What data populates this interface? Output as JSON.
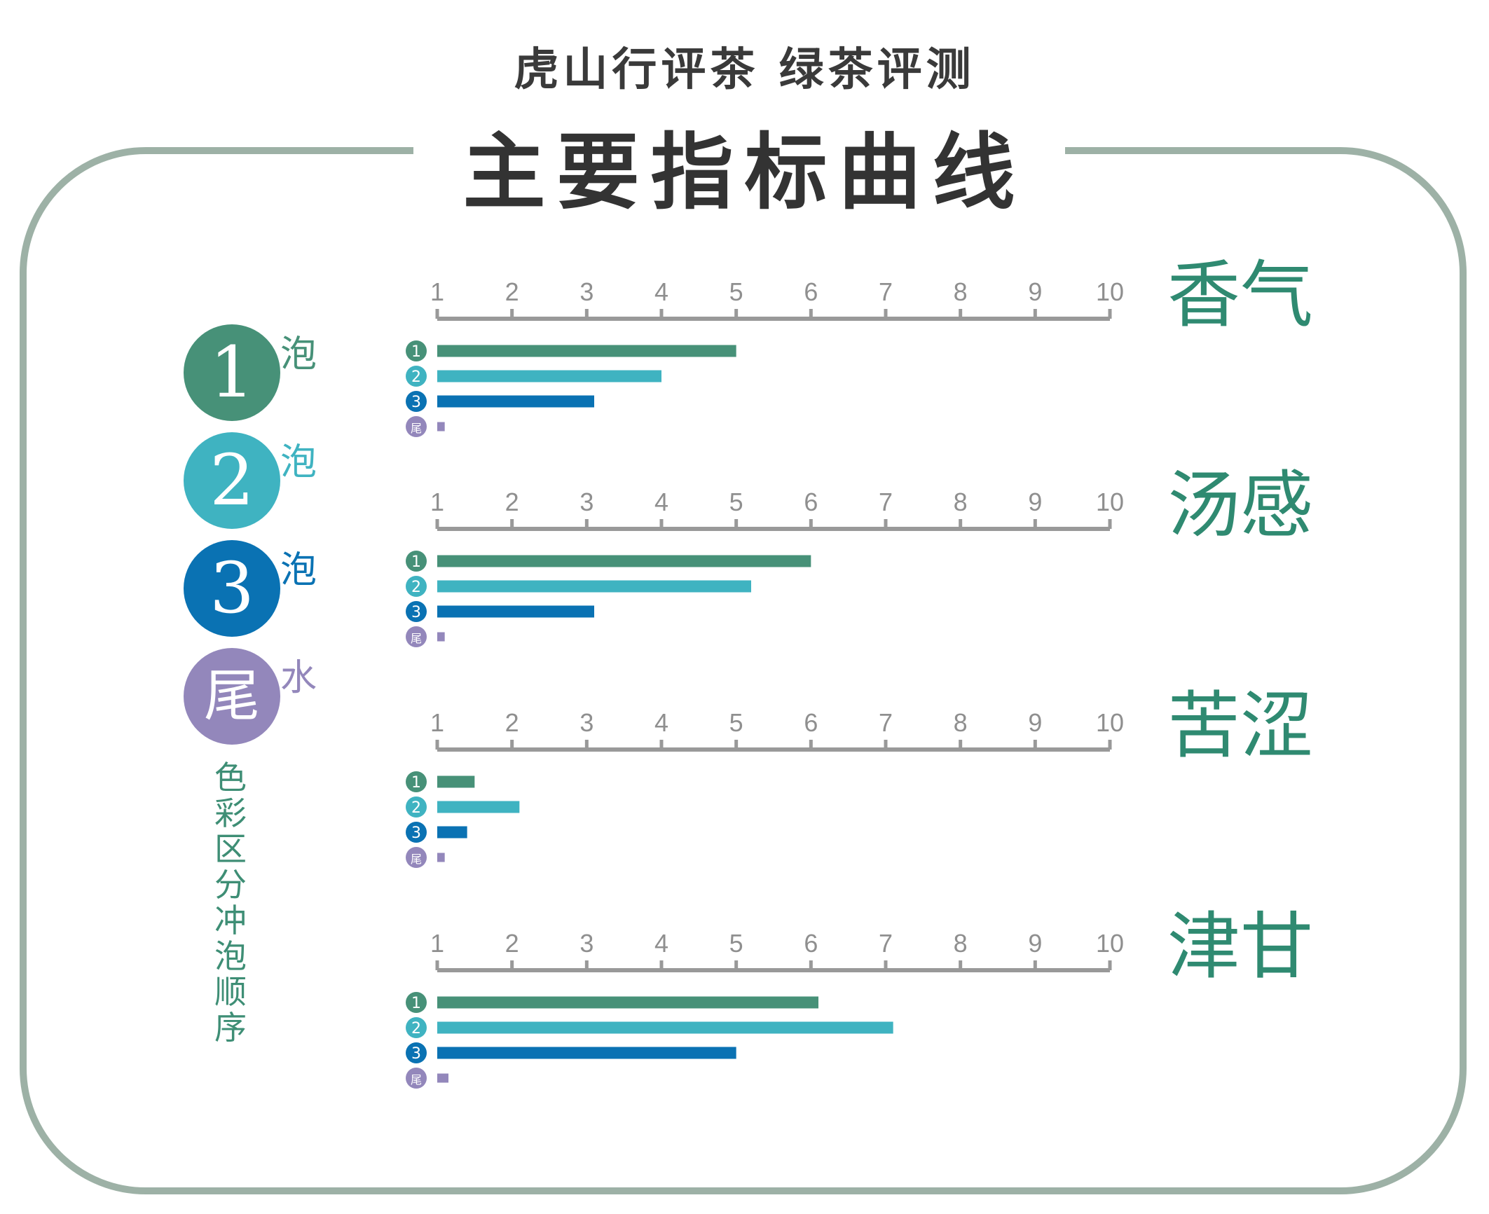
{
  "header": {
    "subtitle": "虎山行评茶  绿茶评测",
    "title": "主要指标曲线"
  },
  "legend": {
    "items": [
      {
        "badge": "1",
        "label": "泡",
        "color": "#479178"
      },
      {
        "badge": "2",
        "label": "泡",
        "color": "#3fb3c1"
      },
      {
        "badge": "3",
        "label": "泡",
        "color": "#0a72b3"
      },
      {
        "badge": "尾",
        "label": "水",
        "color": "#9387bb"
      }
    ],
    "note": "色彩区分冲泡顺序"
  },
  "chart_data": [
    {
      "type": "bar",
      "orientation": "horizontal",
      "title": "香气",
      "xlim": [
        1,
        10
      ],
      "ticks": [
        "1",
        "2",
        "3",
        "4",
        "5",
        "6",
        "7",
        "8",
        "9",
        "10"
      ],
      "categories": [
        "1",
        "2",
        "3",
        "尾"
      ],
      "values": [
        5.0,
        4.0,
        3.1,
        1.1
      ]
    },
    {
      "type": "bar",
      "orientation": "horizontal",
      "title": "汤感",
      "xlim": [
        1,
        10
      ],
      "ticks": [
        "1",
        "2",
        "3",
        "4",
        "5",
        "6",
        "7",
        "8",
        "9",
        "10"
      ],
      "categories": [
        "1",
        "2",
        "3",
        "尾"
      ],
      "values": [
        6.0,
        5.2,
        3.1,
        1.1
      ]
    },
    {
      "type": "bar",
      "orientation": "horizontal",
      "title": "苦涩",
      "xlim": [
        1,
        10
      ],
      "ticks": [
        "1",
        "2",
        "3",
        "4",
        "5",
        "6",
        "7",
        "8",
        "9",
        "10"
      ],
      "categories": [
        "1",
        "2",
        "3",
        "尾"
      ],
      "values": [
        1.5,
        2.1,
        1.4,
        1.1
      ]
    },
    {
      "type": "bar",
      "orientation": "horizontal",
      "title": "津甘",
      "xlim": [
        1,
        10
      ],
      "ticks": [
        "1",
        "2",
        "3",
        "4",
        "5",
        "6",
        "7",
        "8",
        "9",
        "10"
      ],
      "categories": [
        "1",
        "2",
        "3",
        "尾"
      ],
      "values": [
        6.1,
        7.1,
        5.0,
        1.15
      ]
    }
  ]
}
